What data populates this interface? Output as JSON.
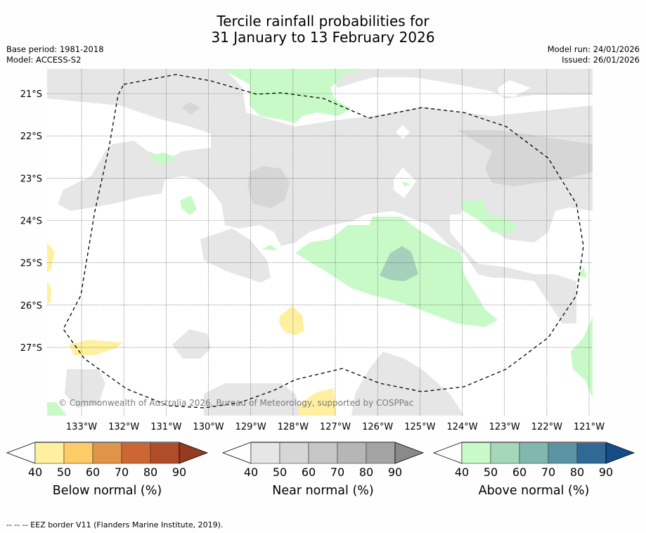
{
  "title_line1": "Tercile rainfall probabilities for",
  "title_line2": "31 January to 13 February 2026",
  "base_period": "Base period: 1981-2018",
  "model": "Model: ACCESS-S2",
  "model_run": "Model run: 24/01/2026",
  "issued": "Issued: 26/01/2026",
  "copyright": "© Commonwealth of Australia 2026, Bureau of Meteorology, supported by COSPPac",
  "lat_labels": [
    "21°S",
    "22°S",
    "23°S",
    "24°S",
    "25°S",
    "26°S",
    "27°S"
  ],
  "lon_labels": [
    "133°W",
    "132°W",
    "131°W",
    "130°W",
    "129°W",
    "128°W",
    "127°W",
    "126°W",
    "125°W",
    "124°W",
    "123°W",
    "122°W",
    "121°W"
  ],
  "colorbars": [
    {
      "label": "Below normal (%)",
      "ticks": [
        "40",
        "50",
        "60",
        "70",
        "80",
        "90"
      ],
      "colors": [
        "#fff0a0",
        "#fecc66",
        "#e09448",
        "#cd6632",
        "#b14c28",
        "#963a22"
      ]
    },
    {
      "label": "Near normal (%)",
      "ticks": [
        "40",
        "50",
        "60",
        "70",
        "80",
        "90"
      ],
      "colors": [
        "#e6e6e6",
        "#d6d6d6",
        "#c6c6c6",
        "#b6b6b6",
        "#a4a4a4",
        "#8a8a8a"
      ]
    },
    {
      "label": "Above normal (%)",
      "ticks": [
        "40",
        "50",
        "60",
        "70",
        "80",
        "90"
      ],
      "colors": [
        "#c8fac8",
        "#a4d8b8",
        "#80b8b0",
        "#5a94a2",
        "#306896",
        "#154c84"
      ]
    }
  ],
  "footnote": "--  --  -- EEZ border V11 (Flanders Marine Institute, 2019)."
}
